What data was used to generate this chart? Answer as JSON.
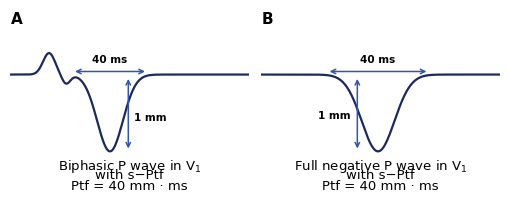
{
  "background_color": "#ffffff",
  "wave_color": "#1a2a5e",
  "arrow_color": "#3355aa",
  "label_A": "A",
  "label_B": "B",
  "label_40ms": "40 ms",
  "label_1mm": "1 mm",
  "text_A_line1": "Biphasic P wave in V$_1$",
  "text_A_line2": "with s−Ptf",
  "text_A_line3": "Ptf = 40 mm · ms",
  "text_B_line1": "Full negative P wave in V$_1$",
  "text_B_line2": "with s−Ptf",
  "text_B_line3": "Ptf = 40 mm · ms",
  "font_size_text": 9.5,
  "font_size_AB": 11,
  "font_size_annot": 7.5
}
